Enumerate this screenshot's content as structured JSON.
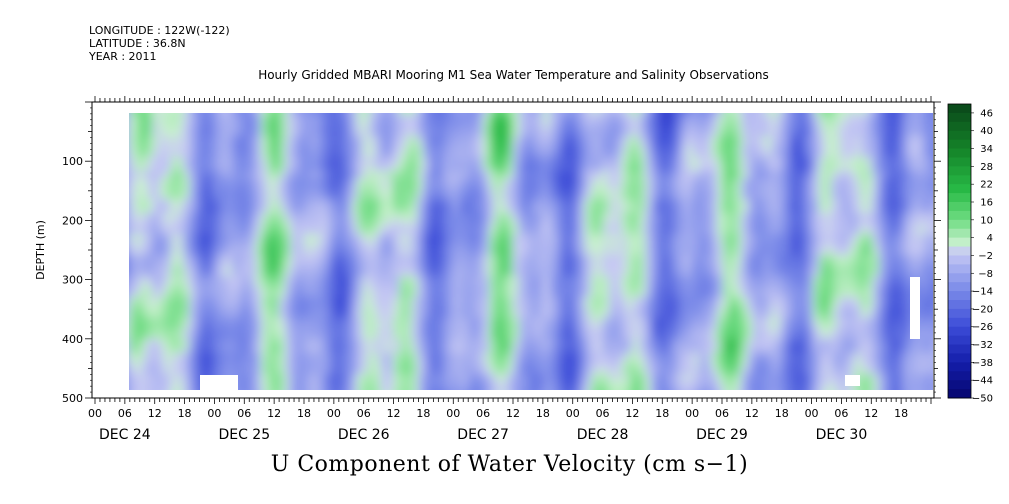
{
  "meta": {
    "longitude": "LONGITUDE : 122W(-122)",
    "latitude": "LATITUDE : 36.8N",
    "year": "YEAR : 2011"
  },
  "title": "Hourly Gridded MBARI Mooring M1 Sea Water Temperature and Salinity Observations",
  "chart_data": {
    "type": "heatmap",
    "title": "Hourly Gridded MBARI Mooring M1 Sea Water Temperature and Salinity Observations",
    "xlabel": "",
    "ylabel": "DEPTH (m)",
    "variable_label": "U Component of Water Velocity (cm s−1)",
    "x_hour_ticks": [
      "00",
      "06",
      "12",
      "18",
      "00",
      "06",
      "12",
      "18",
      "00",
      "06",
      "12",
      "18",
      "00",
      "06",
      "12",
      "18",
      "00",
      "06",
      "12",
      "18",
      "00",
      "06",
      "12",
      "18",
      "00",
      "06",
      "12",
      "18"
    ],
    "x_day_labels": [
      "DEC 24",
      "DEC 25",
      "DEC 26",
      "DEC 27",
      "DEC 28",
      "DEC 29",
      "DEC 30"
    ],
    "x_range_hours": [
      0,
      168
    ],
    "y_ticks": [
      100,
      200,
      300,
      400,
      500
    ],
    "ylim": [
      500,
      10
    ],
    "y_inverted": true,
    "colorbar_ticks": [
      46,
      40,
      34,
      28,
      22,
      16,
      10,
      4,
      -2,
      -8,
      -14,
      -20,
      -26,
      -32,
      -38,
      -44,
      -50
    ],
    "colorbar_range": [
      -50,
      49
    ],
    "colors": {
      "positive_strong": "#0a4a1a",
      "positive": "#27b845",
      "neutral_pos": "#c8f0c8",
      "neutral_neg": "#c8c8f4",
      "negative": "#3c4cd8",
      "negative_strong": "#06066e"
    },
    "field_description": "Alternating vertical bands of weak eastward (green, ~0 to +16) and weak westward (blue/lavender, ~-2 to -20) velocity throughout 10-490 m depth over Dec 24-30, 2011; data gaps at start (Dec 24 00-06) and end of Dec 30."
  }
}
